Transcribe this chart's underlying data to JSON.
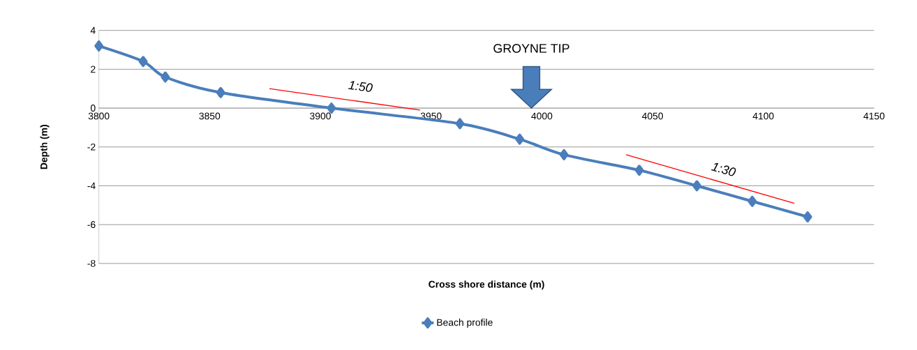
{
  "chart_data": {
    "type": "line",
    "xlabel": "Cross shore distance (m)",
    "ylabel": "Depth (m)",
    "xlim": [
      3800,
      4150
    ],
    "ylim": [
      -8,
      4
    ],
    "xticks": [
      3800,
      3850,
      3900,
      3950,
      4000,
      4050,
      4100,
      4150
    ],
    "yticks": [
      -8,
      -6,
      -4,
      -2,
      0,
      2,
      4
    ],
    "grid": "y",
    "legend": "bottom",
    "series": [
      {
        "name": "Beach profile",
        "color": "#4a7ebb",
        "marker": "diamond",
        "x": [
          3800,
          3820,
          3830,
          3855,
          3905,
          3963,
          3990,
          4010,
          4044,
          4070,
          4095,
          4120
        ],
        "values": [
          3.2,
          2.4,
          1.6,
          0.8,
          0,
          -0.8,
          -1.6,
          -2.4,
          -3.2,
          -4.0,
          -4.8,
          -5.6
        ]
      },
      {
        "color": "#ff0000",
        "marker": "none",
        "x": [
          3877,
          3945
        ],
        "values": [
          1.0,
          -0.1
        ]
      },
      {
        "color": "#ff0000",
        "marker": "none",
        "x": [
          4038,
          4114
        ],
        "values": [
          -2.4,
          -4.9
        ]
      }
    ],
    "annotations": [
      "1:50",
      "1:30",
      "GROYNE TIP"
    ]
  }
}
